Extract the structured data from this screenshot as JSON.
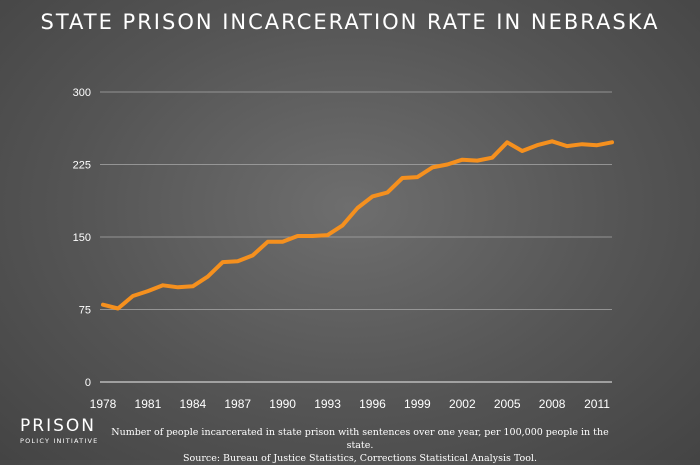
{
  "chart_data": {
    "type": "line",
    "title": "STATE PRISON INCARCERATION RATE IN NEBRASKA",
    "xlabel": "",
    "ylabel": "",
    "xlim": [
      1978,
      2012
    ],
    "ylim": [
      0,
      300
    ],
    "yticks": [
      0,
      75,
      150,
      225,
      300
    ],
    "xticks": [
      1978,
      1981,
      1984,
      1987,
      1990,
      1993,
      1996,
      1999,
      2002,
      2005,
      2008,
      2011
    ],
    "grid": "horizontal",
    "legend": "none",
    "line_color": "#f5901e",
    "series": [
      {
        "x": [
          1978,
          1979,
          1980,
          1981,
          1982,
          1983,
          1984,
          1985,
          1986,
          1987,
          1988,
          1989,
          1990,
          1991,
          1992,
          1993,
          1994,
          1995,
          1996,
          1997,
          1998,
          1999,
          2000,
          2001,
          2002,
          2003,
          2004,
          2005,
          2006,
          2007,
          2008,
          2009,
          2010,
          2011,
          2012
        ],
        "values": [
          80,
          76,
          89,
          94,
          100,
          98,
          99,
          109,
          124,
          125,
          131,
          145,
          145,
          151,
          151,
          152,
          162,
          180,
          192,
          196,
          211,
          212,
          222,
          225,
          230,
          229,
          232,
          248,
          239,
          245,
          249,
          244,
          246,
          245,
          248
        ]
      }
    ]
  },
  "branding": {
    "logo_line1": "PRISON",
    "logo_line2": "POLICY INITIATIVE"
  },
  "footnote": {
    "line1": "Number of people incarcerated in state prison with sentences over one year, per 100,000 people in the state.",
    "line2": "Source: Bureau of Justice Statistics, Corrections Statistical Analysis Tool."
  }
}
